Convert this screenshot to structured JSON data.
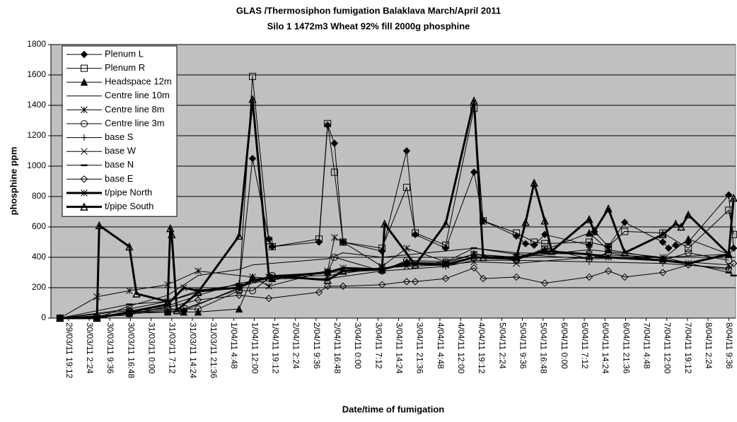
{
  "chart_data": {
    "type": "line",
    "title": "GLAS /Thermosiphon fumigation Balaklava March/April 2011",
    "subtitle": "Silo 1 1472m3 Wheat 92% fill  2000g phosphine",
    "y_label": "phosphine ppm",
    "x_label": "Date/time of fumigation",
    "ylim": [
      0,
      1800
    ],
    "yticks": [
      0,
      200,
      400,
      600,
      800,
      1000,
      1200,
      1400,
      1600,
      1800
    ],
    "xlim": [
      "29/03/11 13:02",
      "8/04/11 12:00"
    ],
    "xticks": [
      "29/03/11 19:12",
      "30/03/11 2:24",
      "30/03/11 9:36",
      "30/03/11 16:48",
      "31/03/11 0:00",
      "31/03/11 7:12",
      "31/03/11 14:24",
      "31/03/11 21:36",
      "1/04/11 4:48",
      "1/04/11 12:00",
      "1/04/11 19:12",
      "2/04/11 2:24",
      "2/04/11 9:36",
      "2/04/11 16:48",
      "3/04/11 0:00",
      "3/04/11 7:12",
      "3/04/11 14:24",
      "3/04/11 21:36",
      "4/04/11 4:48",
      "4/04/11 12:00",
      "4/04/11 19:12",
      "5/04/11 2:24",
      "5/04/11 9:36",
      "5/04/11 16:48",
      "6/04/11 0:00",
      "6/04/11 7:12",
      "6/04/11 14:24",
      "6/04/11 21:36",
      "7/04/11 4:48",
      "7/04/11 12:00",
      "7/04/11 19:12",
      "8/04/11 2:24",
      "8/04/11 9:36"
    ],
    "grid": true,
    "plot_background": "#c0c0c0",
    "legend": "upper left",
    "series": [
      {
        "name": "Plenum L",
        "color": "#000000",
        "marker": "filled-diamond",
        "line_width": 1,
        "x": [
          "29/03/11 16:12",
          "30/03/11 5:06",
          "30/03/11 16:24",
          "31/03/11 5:48",
          "31/03/11 11:24",
          "1/04/11 6:42",
          "1/04/11 11:24",
          "1/04/11 17:06",
          "1/04/11 18:18",
          "2/04/11 10:36",
          "2/04/11 13:36",
          "2/04/11 16:00",
          "2/04/11 19:00",
          "3/04/11 8:36",
          "3/04/11 17:12",
          "3/04/11 20:12",
          "4/04/11 6:48",
          "4/04/11 16:42",
          "4/04/11 19:54",
          "5/04/11 7:30",
          "5/04/11 10:42",
          "5/04/11 13:42",
          "5/04/11 17:24",
          "6/04/11 8:54",
          "6/04/11 10:42",
          "6/04/11 15:36",
          "6/04/11 21:18",
          "7/04/11 10:36",
          "7/04/11 12:36",
          "7/04/11 15:06",
          "7/04/11 19:30",
          "8/04/11 9:36",
          "8/04/11 11:18"
        ],
        "values": [
          0,
          0,
          40,
          40,
          50,
          200,
          1050,
          520,
          470,
          500,
          1270,
          1150,
          500,
          440,
          1100,
          550,
          460,
          960,
          640,
          540,
          490,
          480,
          550,
          480,
          570,
          470,
          630,
          500,
          460,
          480,
          500,
          810,
          460
        ]
      },
      {
        "name": "Plenum R",
        "color": "#000000",
        "marker": "open-square",
        "line_width": 1,
        "x": [
          "29/03/11 16:12",
          "30/03/11 5:06",
          "30/03/11 16:24",
          "31/03/11 5:48",
          "31/03/11 11:24",
          "1/04/11 6:42",
          "1/04/11 11:24",
          "1/04/11 17:06",
          "1/04/11 18:18",
          "2/04/11 10:36",
          "2/04/11 13:36",
          "2/04/11 16:00",
          "2/04/11 19:00",
          "3/04/11 8:36",
          "3/04/11 17:12",
          "3/04/11 20:12",
          "4/04/11 6:48",
          "4/04/11 16:42",
          "4/04/11 19:54",
          "5/04/11 7:30",
          "5/04/11 13:42",
          "5/04/11 17:24",
          "6/04/11 8:54",
          "6/04/11 15:36",
          "6/04/11 21:18",
          "7/04/11 10:36",
          "7/04/11 19:30",
          "8/04/11 9:36",
          "8/04/11 11:18"
        ],
        "values": [
          0,
          0,
          40,
          50,
          60,
          190,
          1590,
          510,
          470,
          520,
          1280,
          960,
          500,
          460,
          860,
          560,
          480,
          1380,
          640,
          560,
          500,
          490,
          500,
          470,
          570,
          560,
          460,
          710,
          550
        ]
      },
      {
        "name": "Headspace  12m",
        "color": "#000000",
        "marker": "filled-triangle",
        "line_width": 1,
        "x": [
          "29/03/11 16:12",
          "30/03/11 5:06",
          "30/03/11 16:24",
          "31/03/11 5:48",
          "31/03/11 11:24",
          "31/03/11 16:24",
          "1/04/11 6:42",
          "1/04/11 11:24",
          "1/04/11 18:18",
          "2/04/11 13:36",
          "3/04/11 8:36",
          "3/04/11 17:12",
          "4/04/11 6:48",
          "4/04/11 16:42",
          "5/04/11 7:30",
          "5/04/11 17:24",
          "6/04/11 8:54",
          "6/04/11 15:36",
          "7/04/11 10:36",
          "7/04/11 19:30",
          "8/04/11 9:36"
        ],
        "values": [
          0,
          0,
          30,
          40,
          40,
          40,
          60,
          270,
          260,
          300,
          320,
          370,
          360,
          420,
          400,
          450,
          560,
          450,
          390,
          520,
          420
        ]
      },
      {
        "name": "Centre line  10m",
        "color": "#000000",
        "marker": "none",
        "line_width": 1,
        "x": [
          "29/03/11 16:12",
          "30/03/11 5:06",
          "30/03/11 16:24",
          "31/03/11 5:48",
          "31/03/11 16:24",
          "1/04/11 6:42",
          "1/04/11 11:24",
          "2/04/11 13:36",
          "2/04/11 19:00",
          "3/04/11 8:36",
          "4/04/11 16:42",
          "5/04/11 7:30",
          "6/04/11 8:54",
          "7/04/11 10:36",
          "8/04/11 9:36"
        ],
        "values": [
          0,
          0,
          80,
          150,
          280,
          320,
          350,
          390,
          430,
          400,
          460,
          430,
          420,
          400,
          400
        ]
      },
      {
        "name": "Centre line  8m",
        "color": "#000000",
        "marker": "asterisk",
        "line_width": 1,
        "x": [
          "29/03/11 16:12",
          "30/03/11 5:06",
          "30/03/11 16:24",
          "31/03/11 5:48",
          "31/03/11 16:24",
          "1/04/11 11:24",
          "1/04/11 17:06",
          "2/04/11 13:36",
          "2/04/11 16:00",
          "2/04/11 19:00",
          "3/04/11 8:36",
          "3/04/11 17:12",
          "4/04/11 6:48",
          "4/04/11 16:42",
          "5/04/11 7:30",
          "6/04/11 8:54",
          "7/04/11 10:36",
          "8/04/11 9:36"
        ],
        "values": [
          0,
          140,
          180,
          220,
          310,
          270,
          210,
          310,
          530,
          500,
          340,
          460,
          370,
          420,
          400,
          450,
          400,
          420
        ]
      },
      {
        "name": "Centre line  3m",
        "color": "#000000",
        "marker": "open-circle",
        "line_width": 1,
        "x": [
          "29/03/11 16:12",
          "30/03/11 16:24",
          "31/03/11 5:48",
          "31/03/11 16:24",
          "1/04/11 6:42",
          "1/04/11 11:24",
          "1/04/11 18:18",
          "2/04/11 13:36",
          "2/04/11 16:00",
          "3/04/11 8:36",
          "3/04/11 17:12",
          "4/04/11 6:48",
          "4/04/11 16:42",
          "5/04/11 7:30",
          "5/04/11 17:24",
          "6/04/11 8:54",
          "6/04/11 15:36",
          "7/04/11 10:36",
          "7/04/11 19:30",
          "8/04/11 9:36"
        ],
        "values": [
          0,
          50,
          60,
          60,
          180,
          180,
          280,
          300,
          400,
          310,
          380,
          370,
          420,
          380,
          460,
          390,
          430,
          380,
          430,
          380
        ]
      },
      {
        "name": "base S",
        "color": "#000000",
        "marker": "plus",
        "line_width": 1,
        "x": [
          "29/03/11 16:12",
          "30/03/11 16:24",
          "31/03/11 5:48",
          "31/03/11 16:24",
          "1/04/11 6:42",
          "1/04/11 18:18",
          "2/04/11 13:36",
          "3/04/11 8:36",
          "4/04/11 6:48",
          "4/04/11 16:42",
          "5/04/11 7:30",
          "6/04/11 8:54",
          "7/04/11 10:36",
          "8/04/11 9:36"
        ],
        "values": [
          0,
          20,
          80,
          150,
          230,
          260,
          260,
          310,
          340,
          380,
          380,
          370,
          360,
          330
        ]
      },
      {
        "name": "base W",
        "color": "#000000",
        "marker": "cross",
        "line_width": 1,
        "x": [
          "29/03/11 16:12",
          "30/03/11 16:24",
          "31/03/11 5:48",
          "31/03/11 16:24",
          "1/04/11 6:42",
          "1/04/11 17:06",
          "2/04/11 13:36",
          "3/04/11 8:36",
          "3/04/11 17:12",
          "4/04/11 6:48",
          "4/04/11 16:42",
          "5/04/11 7:30",
          "6/04/11 8:54",
          "7/04/11 10:36",
          "8/04/11 9:36"
        ],
        "values": [
          0,
          60,
          110,
          170,
          200,
          270,
          280,
          330,
          340,
          350,
          370,
          360,
          400,
          380,
          350
        ]
      },
      {
        "name": "base N",
        "color": "#000000",
        "marker": "dash",
        "line_width": 1,
        "x": [
          "29/03/11 16:12",
          "30/03/11 16:24",
          "31/03/11 5:48",
          "31/03/11 16:24",
          "1/04/11 6:42",
          "1/04/11 18:18",
          "2/04/11 13:36",
          "3/04/11 8:36",
          "4/04/11 6:48",
          "4/04/11 16:42",
          "5/04/11 7:30",
          "6/04/11 8:54",
          "7/04/11 10:36",
          "8/04/11 9:36",
          "8/04/11 11:18"
        ],
        "values": [
          0,
          90,
          110,
          180,
          220,
          250,
          310,
          330,
          370,
          460,
          420,
          390,
          400,
          300,
          280
        ]
      },
      {
        "name": "base E",
        "color": "#000000",
        "marker": "open-diamond",
        "line_width": 1,
        "x": [
          "29/03/11 16:12",
          "30/03/11 16:24",
          "31/03/11 5:48",
          "31/03/11 16:24",
          "1/04/11 6:42",
          "1/04/11 17:06",
          "2/04/11 10:36",
          "2/04/11 13:36",
          "2/04/11 19:00",
          "3/04/11 8:36",
          "3/04/11 17:12",
          "3/04/11 20:12",
          "4/04/11 6:48",
          "4/04/11 16:42",
          "4/04/11 19:54",
          "5/04/11 7:30",
          "5/04/11 17:24",
          "6/04/11 8:54",
          "6/04/11 15:36",
          "6/04/11 21:18",
          "7/04/11 10:36",
          "7/04/11 19:30",
          "8/04/11 9:36",
          "8/04/11 11:18"
        ],
        "values": [
          0,
          30,
          70,
          120,
          150,
          130,
          170,
          210,
          210,
          220,
          240,
          240,
          260,
          330,
          260,
          270,
          230,
          270,
          310,
          270,
          300,
          350,
          320,
          360
        ]
      },
      {
        "name": "t/pipe North",
        "color": "#000000",
        "marker": "asterisk",
        "line_width": 3,
        "x": [
          "29/03/11 16:12",
          "30/03/11 5:06",
          "30/03/11 16:24",
          "31/03/11 5:48",
          "31/03/11 11:24",
          "31/03/11 16:24",
          "1/04/11 6:42",
          "1/04/11 11:24",
          "1/04/11 18:18",
          "2/04/11 13:36",
          "2/04/11 19:00",
          "3/04/11 8:36",
          "3/04/11 17:12",
          "4/04/11 6:48",
          "4/04/11 16:42",
          "5/04/11 7:30",
          "5/04/11 17:24",
          "6/04/11 8:54",
          "6/04/11 15:36",
          "7/04/11 10:36",
          "7/04/11 19:30",
          "8/04/11 9:36"
        ],
        "values": [
          0,
          0,
          40,
          90,
          200,
          180,
          200,
          250,
          270,
          300,
          330,
          320,
          360,
          350,
          400,
          390,
          440,
          420,
          400,
          380,
          360,
          420
        ]
      },
      {
        "name": "t/pipe South",
        "color": "#000000",
        "marker": "open-triangle",
        "line_width": 3,
        "x": [
          "29/03/11 16:12",
          "30/03/11 5:06",
          "30/03/11 5:54",
          "30/03/11 16:24",
          "30/03/11 18:54",
          "31/03/11 5:48",
          "31/03/11 6:42",
          "31/03/11 7:12",
          "31/03/11 9:00",
          "31/03/11 16:24",
          "1/04/11 6:42",
          "1/04/11 11:24",
          "1/04/11 17:06",
          "2/04/11 13:36",
          "2/04/11 19:00",
          "3/04/11 8:36",
          "3/04/11 9:30",
          "3/04/11 20:12",
          "4/04/11 6:48",
          "4/04/11 16:42",
          "4/04/11 19:54",
          "5/04/11 7:30",
          "5/04/11 10:42",
          "5/04/11 13:42",
          "5/04/11 17:24",
          "5/04/11 19:48",
          "6/04/11 8:54",
          "6/04/11 10:42",
          "6/04/11 15:36",
          "6/04/11 21:18",
          "7/04/11 10:36",
          "7/04/11 15:06",
          "7/04/11 17:00",
          "7/04/11 19:30",
          "8/04/11 9:36",
          "8/04/11 11:18"
        ],
        "values": [
          0,
          0,
          610,
          470,
          160,
          110,
          590,
          550,
          50,
          170,
          540,
          1440,
          280,
          250,
          310,
          320,
          620,
          350,
          620,
          1430,
          400,
          400,
          630,
          890,
          640,
          440,
          650,
          570,
          720,
          430,
          550,
          620,
          600,
          680,
          420,
          790
        ]
      }
    ]
  }
}
